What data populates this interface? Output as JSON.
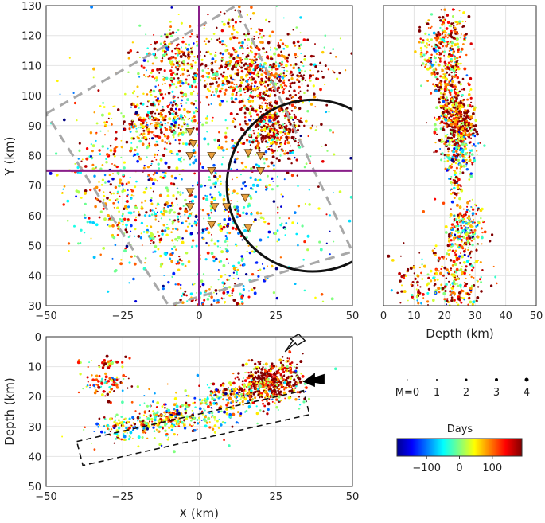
{
  "chart_data": [
    {
      "type": "scatter",
      "name": "map-view",
      "xlabel": "",
      "ylabel": "Y (km)",
      "xlim": [
        -50,
        50
      ],
      "ylim": [
        30,
        130
      ],
      "xticks": [
        "−50",
        "−25",
        "0",
        "25",
        "50"
      ],
      "yticks": [
        "30",
        "40",
        "50",
        "60",
        "70",
        "80",
        "90",
        "100",
        "110",
        "120",
        "130"
      ],
      "grid": true,
      "cross_section_lines": {
        "vertical_x": 0,
        "horizontal_y": 75,
        "color": "#8a1f8a"
      },
      "circle": {
        "center": [
          37,
          70
        ],
        "radius": 28
      },
      "dashed_box_corners": [
        [
          -50,
          94
        ],
        [
          12,
          130
        ],
        [
          50,
          48
        ],
        [
          -10,
          30
        ]
      ],
      "stations": [
        [
          -3,
          88
        ],
        [
          -3,
          80
        ],
        [
          -2,
          84
        ],
        [
          4,
          80
        ],
        [
          4,
          75
        ],
        [
          16,
          81
        ],
        [
          20,
          80
        ],
        [
          -3,
          63
        ],
        [
          -3,
          68
        ],
        [
          4,
          57
        ],
        [
          9,
          63
        ],
        [
          15,
          66
        ],
        [
          16,
          56
        ],
        [
          20,
          75
        ],
        [
          5,
          63
        ]
      ],
      "clusters": [
        {
          "cx": 24,
          "cy": 90,
          "sx": 6,
          "sy": 6,
          "n": 420,
          "w": 0.85
        },
        {
          "cx": 18,
          "cy": 105,
          "sx": 9,
          "sy": 5,
          "n": 320,
          "w": 0.7
        },
        {
          "cx": 12,
          "cy": 115,
          "sx": 10,
          "sy": 7,
          "n": 230,
          "w": 0.55
        },
        {
          "cx": -8,
          "cy": 114,
          "sx": 5,
          "sy": 5,
          "n": 130,
          "w": 0.6
        },
        {
          "cx": -14,
          "cy": 90,
          "sx": 7,
          "sy": 4,
          "n": 220,
          "w": 0.55
        },
        {
          "cx": -5,
          "cy": 100,
          "sx": 10,
          "sy": 10,
          "n": 220,
          "w": 0.3
        },
        {
          "cx": -30,
          "cy": 72,
          "sx": 7,
          "sy": 9,
          "n": 150,
          "w": 0.3
        },
        {
          "cx": -15,
          "cy": 60,
          "sx": 10,
          "sy": 10,
          "n": 230,
          "w": 0.2
        },
        {
          "cx": 8,
          "cy": 55,
          "sx": 14,
          "sy": 15,
          "n": 350,
          "w": -0.1
        },
        {
          "cx": 5,
          "cy": 33,
          "sx": 6,
          "sy": 3,
          "n": 80,
          "w": 0.5
        },
        {
          "cx": 30,
          "cy": 108,
          "sx": 10,
          "sy": 5,
          "n": 130,
          "w": 0.6
        },
        {
          "cx": 0,
          "cy": 75,
          "sx": 25,
          "sy": 25,
          "n": 350,
          "w": 0.0
        }
      ]
    },
    {
      "type": "scatter",
      "name": "depth-section-y",
      "xlabel": "Depth (km)",
      "xlim": [
        0,
        50
      ],
      "ylim": [
        30,
        130
      ],
      "xticks": [
        "0",
        "10",
        "20",
        "30",
        "40",
        "50"
      ],
      "grid": true,
      "clusters": [
        {
          "cx": 25,
          "cy": 90,
          "sx": 2.5,
          "sy": 5,
          "n": 320,
          "w": 0.8
        },
        {
          "cx": 21,
          "cy": 100,
          "sx": 3,
          "sy": 8,
          "n": 240,
          "w": 0.6
        },
        {
          "cx": 22,
          "cy": 117,
          "sx": 3,
          "sy": 6,
          "n": 200,
          "w": 0.55
        },
        {
          "cx": 15,
          "cy": 115,
          "sx": 2,
          "sy": 5,
          "n": 70,
          "w": 0.3
        },
        {
          "cx": 25,
          "cy": 80,
          "sx": 3,
          "sy": 4,
          "n": 140,
          "w": 0.1
        },
        {
          "cx": 24,
          "cy": 70,
          "sx": 1,
          "sy": 2,
          "n": 40,
          "w": 0.6
        },
        {
          "cx": 27,
          "cy": 55,
          "sx": 3,
          "sy": 5,
          "n": 230,
          "w": 0.3
        },
        {
          "cx": 23,
          "cy": 40,
          "sx": 5,
          "sy": 6,
          "n": 200,
          "w": 0.4
        },
        {
          "cx": 10,
          "cy": 36,
          "sx": 4,
          "sy": 6,
          "n": 80,
          "w": 0.6
        },
        {
          "cx": 25,
          "cy": 32,
          "sx": 3,
          "sy": 2,
          "n": 40,
          "w": 0.7
        }
      ]
    },
    {
      "type": "scatter",
      "name": "depth-section-x",
      "xlabel": "X (km)",
      "ylabel": "Depth (km)",
      "xlim": [
        -50,
        50
      ],
      "ylim": [
        0,
        50
      ],
      "xticks": [
        "−50",
        "−25",
        "0",
        "25",
        "50"
      ],
      "yticks": [
        "0",
        "10",
        "20",
        "30",
        "40",
        "50"
      ],
      "grid": true,
      "dashed_box_corners": [
        [
          -40,
          35
        ],
        [
          34,
          18
        ],
        [
          36,
          26
        ],
        [
          -38,
          43
        ]
      ],
      "open_arrow": {
        "tip": [
          28,
          5
        ],
        "dir": "down-left"
      },
      "filled_arrow": {
        "tip": [
          34,
          15
        ],
        "dir": "left"
      },
      "clusters": [
        {
          "cx": 23,
          "cy": 15,
          "sx": 5,
          "sy": 3,
          "n": 350,
          "w": 0.85
        },
        {
          "cx": 12,
          "cy": 19,
          "sx": 7,
          "sy": 2,
          "n": 140,
          "w": 0.5
        },
        {
          "cx": 29,
          "cy": 10,
          "sx": 2,
          "sy": 3,
          "n": 50,
          "w": 0.6
        },
        {
          "cx": -31,
          "cy": 9,
          "sx": 3,
          "sy": 1,
          "n": 40,
          "w": 0.5
        },
        {
          "cx": -31,
          "cy": 16,
          "sx": 4,
          "sy": 2,
          "n": 80,
          "w": 0.5
        },
        {
          "cx": -10,
          "cy": 27,
          "sx": 4,
          "sy": 2,
          "n": 110,
          "w": 0.6
        },
        {
          "cx": -22,
          "cy": 30,
          "sx": 6,
          "sy": 2,
          "n": 100,
          "w": 0.2
        },
        {
          "cx": 2,
          "cy": 25,
          "sx": 14,
          "sy": 5,
          "n": 200,
          "w": 0.0
        },
        {
          "cx": -5,
          "cy": 18,
          "sx": 15,
          "sy": 8,
          "n": 90,
          "w": 0.1
        }
      ]
    }
  ],
  "magnitude_legend": {
    "labels": [
      "M=0",
      "1",
      "2",
      "3",
      "4"
    ]
  },
  "colorbar": {
    "title": "Days",
    "range": [
      -190,
      190
    ],
    "ticks": [
      -100,
      0,
      100
    ],
    "tick_labels": [
      "−100",
      "0",
      "100"
    ],
    "colormap": "jet"
  }
}
